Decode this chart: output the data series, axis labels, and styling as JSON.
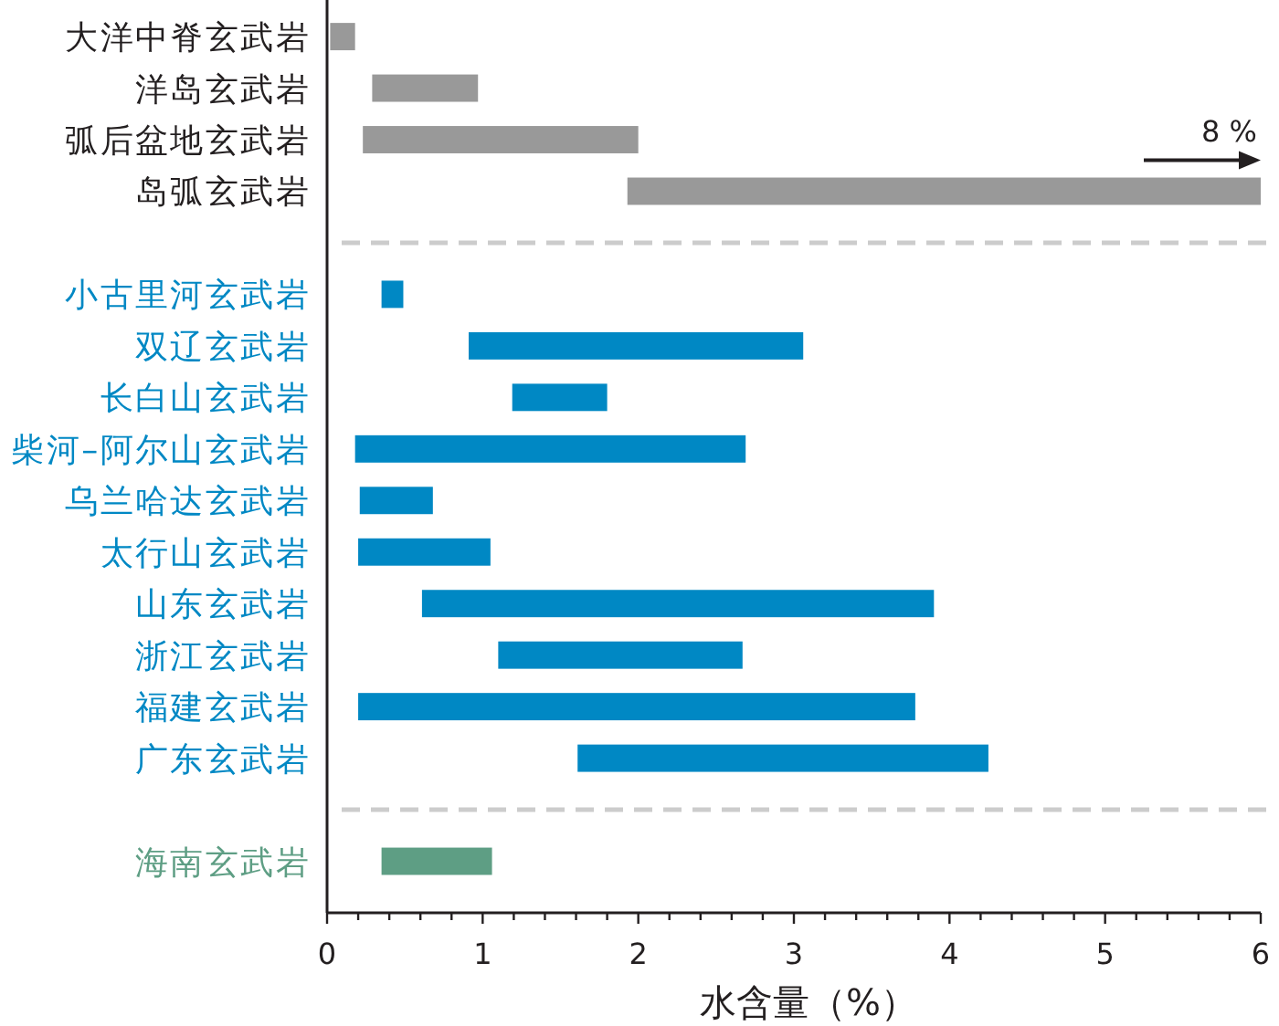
{
  "chart_data": {
    "type": "bar",
    "orientation": "horizontal",
    "xlabel": "水含量（%）",
    "categories": [
      "大洋中脊玄武岩",
      "洋岛玄武岩",
      "弧后盆地玄武岩",
      "岛弧玄武岩",
      null,
      "小古里河玄武岩",
      "双辽玄武岩",
      "长白山玄武岩",
      "柴河–阿尔山玄武岩",
      "乌兰哈达玄武岩",
      "太行山玄武岩",
      "山东玄武岩",
      "浙江玄武岩",
      "福建玄武岩",
      "广东玄武岩",
      null,
      "海南玄武岩"
    ],
    "series": [
      {
        "color": "#999999",
        "base": [
          0.02,
          0.29,
          0.23,
          1.93,
          null,
          null,
          null,
          null,
          null,
          null,
          null,
          null,
          null,
          null,
          null,
          null,
          null
        ],
        "values": [
          0.16,
          0.68,
          1.77,
          4.07,
          null,
          null,
          null,
          null,
          null,
          null,
          null,
          null,
          null,
          null,
          null,
          null,
          null
        ]
      },
      {
        "color": "#0088c4",
        "base": [
          null,
          null,
          null,
          null,
          null,
          0.35,
          0.91,
          1.19,
          0.18,
          0.21,
          0.2,
          0.61,
          1.1,
          0.2,
          1.61,
          null,
          null
        ],
        "values": [
          null,
          null,
          null,
          null,
          null,
          0.14,
          2.15,
          0.61,
          2.51,
          0.47,
          0.85,
          3.29,
          1.57,
          3.58,
          2.64,
          null,
          null
        ]
      },
      {
        "color": "#5e9e84",
        "base": [
          null,
          null,
          null,
          null,
          null,
          null,
          null,
          null,
          null,
          null,
          null,
          null,
          null,
          null,
          null,
          null,
          0.35
        ],
        "values": [
          null,
          null,
          null,
          null,
          null,
          null,
          null,
          null,
          null,
          null,
          null,
          null,
          null,
          null,
          null,
          null,
          0.71
        ]
      }
    ],
    "xlim": [
      0,
      6
    ],
    "xticks": [
      0,
      {
        "value": 0.2,
        "label": null
      },
      {
        "value": 0.4,
        "label": null
      },
      {
        "value": 0.6,
        "label": null
      },
      {
        "value": 0.8,
        "label": null
      },
      1,
      {
        "value": 1.2,
        "label": null
      },
      {
        "value": 1.4,
        "label": null
      },
      {
        "value": 1.6,
        "label": null
      },
      {
        "value": 1.8,
        "label": null
      },
      2,
      {
        "value": 2.2,
        "label": null
      },
      {
        "value": 2.4,
        "label": null
      },
      {
        "value": 2.6,
        "label": null
      },
      {
        "value": 2.8,
        "label": null
      },
      3,
      {
        "value": 3.2,
        "label": null
      },
      {
        "value": 3.4,
        "label": null
      },
      {
        "value": 3.6,
        "label": null
      },
      {
        "value": 3.8,
        "label": null
      },
      4,
      {
        "value": 4.2,
        "label": null
      },
      {
        "value": 4.4,
        "label": null
      },
      {
        "value": 4.6,
        "label": null
      },
      {
        "value": 4.8,
        "label": null
      },
      5,
      {
        "value": 5.2,
        "label": null
      },
      {
        "value": 5.4,
        "label": null
      },
      {
        "value": 5.6,
        "label": null
      },
      {
        "value": 5.8,
        "label": null
      },
      6
    ],
    "annotations": [
      {
        "text": "8 %",
        "x": 6,
        "y": "岛弧玄武岩"
      }
    ]
  }
}
